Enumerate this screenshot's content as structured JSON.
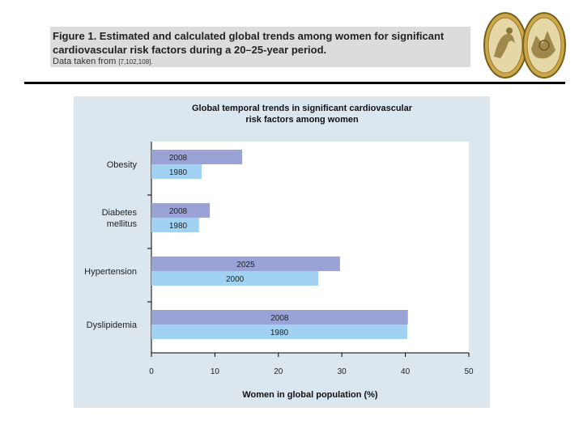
{
  "caption": {
    "title": "Figure 1. Estimated and calculated global trends among women for significant cardiovascular risk factors during a 20–25-year period.",
    "note_prefix": "Data taken from",
    "note_refs": "[7,102,108]."
  },
  "colors": {
    "bar_recent": "#9aa2d6",
    "bar_earlier": "#a2d2f2",
    "panel_bg": "#dce6ef",
    "plot_bg": "#ffffff",
    "axis": "#000000",
    "caption_bg": "#dcdcdc"
  },
  "icons": [
    "coin-medal-icon",
    "coin-medal-icon"
  ],
  "chart_data": {
    "type": "bar",
    "orientation": "horizontal",
    "title": "Global temporal trends in significant cardiovascular risk factors among women",
    "xlabel": "Women in global population (%)",
    "ylabel": "",
    "xlim": [
      0,
      50
    ],
    "xticks": [
      0,
      10,
      20,
      30,
      40,
      50
    ],
    "grid": false,
    "legend": "none",
    "categories": [
      {
        "label": [
          "Obesity"
        ],
        "bars": [
          {
            "year": "2008",
            "value": 14.3,
            "role": "recent"
          },
          {
            "year": "1980",
            "value": 7.9,
            "role": "earlier"
          }
        ]
      },
      {
        "label": [
          "Diabetes",
          "mellitus"
        ],
        "bars": [
          {
            "year": "2008",
            "value": 9.2,
            "role": "recent"
          },
          {
            "year": "1980",
            "value": 7.5,
            "role": "earlier"
          }
        ]
      },
      {
        "label": [
          "Hypertension"
        ],
        "bars": [
          {
            "year": "2025",
            "value": 29.7,
            "role": "recent"
          },
          {
            "year": "2000",
            "value": 26.3,
            "role": "earlier"
          }
        ]
      },
      {
        "label": [
          "Dyslipidemia"
        ],
        "bars": [
          {
            "year": "2008",
            "value": 40.4,
            "role": "recent"
          },
          {
            "year": "1980",
            "value": 40.3,
            "role": "earlier"
          }
        ]
      }
    ]
  }
}
